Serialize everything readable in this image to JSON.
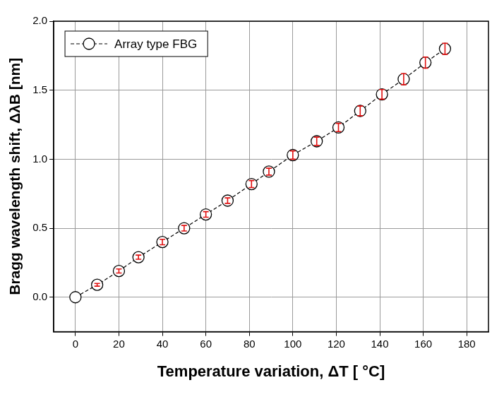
{
  "chart_data": {
    "type": "line",
    "x_label": "Temperature variation, ΔT [ °C]",
    "y_label": "Bragg wavelength shift, ΔλB [nm]",
    "xlim": [
      -10,
      190
    ],
    "xticks": [
      0,
      20,
      40,
      60,
      80,
      100,
      120,
      140,
      160,
      180
    ],
    "ylim": [
      -0.25,
      2.0
    ],
    "yticks": [
      {
        "value": 0,
        "label": "0.0"
      },
      {
        "value": 0.5,
        "label": "0.5"
      },
      {
        "value": 1,
        "label": "1.0"
      },
      {
        "value": 1.5,
        "label": "1.5"
      },
      {
        "value": 2,
        "label": "2.0"
      }
    ],
    "grid": true,
    "legend": "upper left",
    "series": [
      {
        "name": "Array type FBG",
        "color": "#000000",
        "marker": "circle",
        "line_style": "dashed",
        "x": [
          0,
          10,
          20,
          29,
          40,
          50,
          60,
          70,
          81,
          89,
          100,
          111,
          121,
          131,
          141,
          151,
          161,
          170
        ],
        "values": [
          0,
          0.09,
          0.19,
          0.29,
          0.4,
          0.5,
          0.6,
          0.7,
          0.82,
          0.91,
          1.03,
          1.13,
          1.23,
          1.35,
          1.47,
          1.58,
          1.7,
          1.8
        ],
        "errors": [
          0,
          0.01,
          0.015,
          0.015,
          0.02,
          0.02,
          0.02,
          0.02,
          0.025,
          0.025,
          0.03,
          0.03,
          0.03,
          0.035,
          0.035,
          0.04,
          0.04,
          0.04
        ]
      }
    ]
  }
}
